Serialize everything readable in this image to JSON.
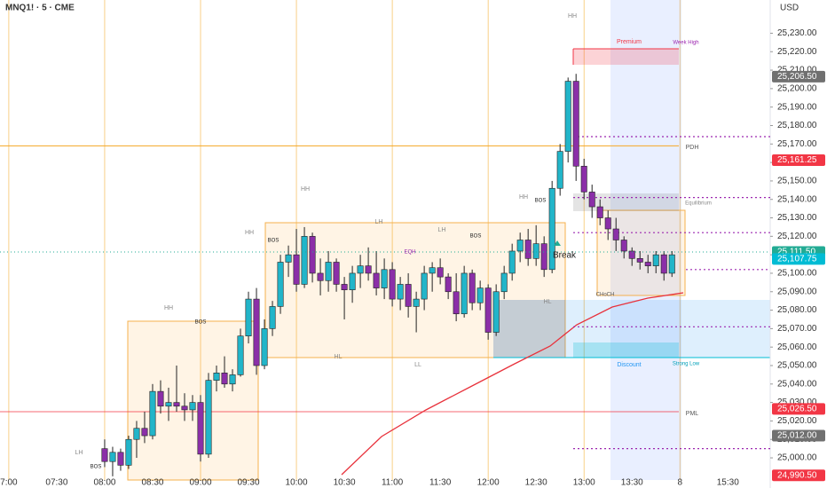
{
  "chart_data": {
    "type": "candlestick",
    "title": "MNQ1! · 5 · CME",
    "currency": "USD",
    "up_color": "#22b5c9",
    "down_color": "#8b2fa8",
    "x": [
      0,
      1,
      2,
      3,
      4,
      5,
      6,
      7,
      8,
      9,
      10,
      11,
      12,
      13,
      14,
      15,
      16,
      17,
      18,
      19,
      20,
      21,
      22,
      23,
      24,
      25,
      26,
      27,
      28,
      29,
      30,
      31,
      32,
      33,
      34,
      35,
      36,
      37,
      38,
      39,
      40,
      41,
      42,
      43,
      44,
      45,
      46,
      47,
      48,
      49,
      50,
      51,
      52,
      53,
      54,
      55,
      56,
      57,
      58,
      59,
      60,
      61,
      62,
      63,
      64,
      65,
      66,
      67,
      68,
      69,
      70,
      71
    ],
    "open": [
      25005,
      24998,
      25003,
      24996,
      25010,
      25016,
      25012,
      25036,
      25028,
      25030,
      25028,
      25026,
      25030,
      25002,
      25042,
      25046,
      25040,
      25045,
      25066,
      25086,
      25050,
      25070,
      25082,
      25106,
      25110,
      25094,
      25120,
      25100,
      25096,
      25106,
      25094,
      25091,
      25100,
      25104,
      25100,
      25092,
      25102,
      25086,
      25094,
      25082,
      25086,
      25100,
      25103,
      25098,
      25090,
      25078,
      25100,
      25084,
      25092,
      25068,
      25090,
      25100,
      25112,
      25118,
      25108,
      25116,
      25102,
      25146,
      25166,
      25204,
      25158,
      25144,
      25136,
      25130,
      25124,
      25118,
      25112,
      25108,
      25106,
      25104,
      25110,
      25100
    ],
    "high": [
      25010,
      25006,
      25005,
      25012,
      25020,
      25025,
      25040,
      25042,
      25038,
      25050,
      25035,
      25034,
      25034,
      25046,
      25050,
      25055,
      25048,
      25070,
      25090,
      25092,
      25075,
      25085,
      25110,
      25115,
      25124,
      25125,
      25122,
      25108,
      25112,
      25108,
      25098,
      25104,
      25110,
      25114,
      25112,
      25108,
      25106,
      25098,
      25100,
      25090,
      25104,
      25106,
      25108,
      25100,
      25100,
      25104,
      25102,
      25096,
      25094,
      25094,
      25104,
      25116,
      25122,
      25124,
      25126,
      25120,
      25150,
      25170,
      25206,
      25208,
      25162,
      25148,
      25140,
      25134,
      25130,
      25120,
      25114,
      25112,
      25110,
      25112,
      25112,
      25112
    ],
    "low": [
      24995,
      24990,
      24993,
      24994,
      25000,
      25008,
      25010,
      25024,
      25020,
      25025,
      25020,
      25020,
      24998,
      25000,
      25036,
      25038,
      25036,
      25044,
      25062,
      25045,
      25048,
      25066,
      25078,
      25098,
      25090,
      25092,
      25095,
      25088,
      25090,
      25090,
      25075,
      25084,
      25092,
      25096,
      25088,
      25086,
      25082,
      25080,
      25076,
      25068,
      25080,
      25090,
      25094,
      25086,
      25074,
      25076,
      25080,
      25080,
      25064,
      25066,
      25086,
      25096,
      25106,
      25104,
      25104,
      25098,
      25100,
      25142,
      25160,
      25150,
      25140,
      25130,
      25126,
      25118,
      25112,
      25108,
      25104,
      25102,
      25100,
      25100,
      25096,
      25098
    ],
    "close": [
      24998,
      25003,
      24996,
      25010,
      25016,
      25012,
      25036,
      25028,
      25030,
      25028,
      25026,
      25030,
      25002,
      25042,
      25046,
      25040,
      25045,
      25066,
      25086,
      25050,
      25070,
      25082,
      25106,
      25110,
      25094,
      25120,
      25100,
      25096,
      25106,
      25094,
      25091,
      25100,
      25104,
      25100,
      25092,
      25102,
      25086,
      25094,
      25082,
      25086,
      25100,
      25103,
      25098,
      25090,
      25078,
      25100,
      25084,
      25092,
      25068,
      25090,
      25100,
      25112,
      25118,
      25108,
      25116,
      25102,
      25146,
      25166,
      25204,
      25158,
      25144,
      25136,
      25130,
      25124,
      25118,
      25112,
      25108,
      25106,
      25104,
      25110,
      25100,
      25110
    ],
    "xlim": [
      -13.1,
      83.3
    ],
    "xticks": [
      {
        "value": -12,
        "label": "7:00"
      },
      {
        "value": -6,
        "label": "07:30"
      },
      {
        "value": 0,
        "label": "08:00"
      },
      {
        "value": 6,
        "label": "08:30"
      },
      {
        "value": 12,
        "label": "09:00"
      },
      {
        "value": 18,
        "label": "09:30"
      },
      {
        "value": 24,
        "label": "10:00"
      },
      {
        "value": 30,
        "label": "10:30"
      },
      {
        "value": 36,
        "label": "11:00"
      },
      {
        "value": 42,
        "label": "11:30"
      },
      {
        "value": 48,
        "label": "12:00"
      },
      {
        "value": 54,
        "label": "12:30"
      },
      {
        "value": 60,
        "label": "13:00"
      },
      {
        "value": 66,
        "label": "13:30"
      },
      {
        "value": 72,
        "label": "8"
      },
      {
        "value": 78,
        "label": "15:30"
      }
    ],
    "ylim": [
      24988,
      25248
    ],
    "yticks": [
      {
        "value": 25000,
        "label": "25,000.00"
      },
      {
        "value": 25010,
        "label": "25,010.00"
      },
      {
        "value": 25020,
        "label": "25,020.00"
      },
      {
        "value": 25030,
        "label": "25,030.00"
      },
      {
        "value": 25040,
        "label": "25,040.00"
      },
      {
        "value": 25050,
        "label": "25,050.00"
      },
      {
        "value": 25060,
        "label": "25,060.00"
      },
      {
        "value": 25070,
        "label": "25,070.00"
      },
      {
        "value": 25080,
        "label": "25,080.00"
      },
      {
        "value": 25090,
        "label": "25,090.00"
      },
      {
        "value": 25100,
        "label": "25,100.00"
      },
      {
        "value": 25110,
        "label": "25,110.00"
      },
      {
        "value": 25120,
        "label": "25,120.00"
      },
      {
        "value": 25130,
        "label": "25,130.00"
      },
      {
        "value": 25140,
        "label": "25,140.00"
      },
      {
        "value": 25150,
        "label": "25,150.00"
      },
      {
        "value": 25160,
        "label": "25,160.00"
      },
      {
        "value": 25170,
        "label": "25,170.00"
      },
      {
        "value": 25180,
        "label": "25,180.00"
      },
      {
        "value": 25190,
        "label": "25,190.00"
      },
      {
        "value": 25200,
        "label": "25,200.00"
      },
      {
        "value": 25210,
        "label": "25,210.00"
      },
      {
        "value": 25220,
        "label": "25,220.00"
      },
      {
        "value": 25230,
        "label": "25,230.00"
      }
    ],
    "price_badges": [
      {
        "value": 25206.5,
        "label": "25,206.50",
        "color": "#707070"
      },
      {
        "value": 25161.25,
        "label": "25,161.25",
        "color": "#f23645"
      },
      {
        "value": 25111.5,
        "label": "25,111.50",
        "color": "#22ab94"
      },
      {
        "value": 25107.75,
        "label": "25,107.75",
        "color": "#00bcd4"
      },
      {
        "value": 25026.5,
        "label": "25,026.50",
        "color": "#f23645"
      },
      {
        "value": 25012,
        "label": "25,012.00",
        "color": "#707070"
      },
      {
        "value": 24990.5,
        "label": "24,990.50",
        "color": "#f23645"
      }
    ],
    "pdh": 25169,
    "pml": 25025,
    "dotted_levels": [
      25174,
      25141,
      25122,
      25102,
      25071,
      25005
    ],
    "annotations": [
      "HH",
      "Premium",
      "Week High",
      "PDH",
      "Equilibrium",
      "HH",
      "HH",
      "BOS",
      "LH",
      "LH",
      "BOS",
      "HH",
      "BOS",
      "EQH",
      "Break",
      "HL",
      "CHoCH",
      "HH",
      "BOS",
      "HL",
      "LL",
      "Discount",
      "Strong Low",
      "PML",
      "LH",
      "BOS"
    ]
  }
}
